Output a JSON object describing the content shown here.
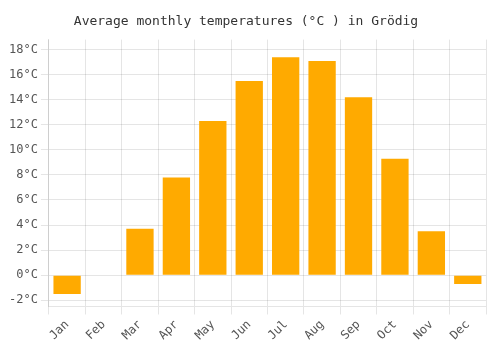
{
  "chart_data": {
    "type": "bar",
    "title": "Average monthly temperatures (°C ) in Grödig",
    "categories": [
      "Jan",
      "Feb",
      "Mar",
      "Apr",
      "May",
      "Jun",
      "Jul",
      "Aug",
      "Sep",
      "Oct",
      "Nov",
      "Dec"
    ],
    "values": [
      -1.5,
      0.0,
      3.7,
      7.8,
      12.3,
      15.5,
      17.4,
      17.1,
      14.2,
      9.3,
      3.5,
      -0.7
    ],
    "color": "#FFAA00",
    "ylim": [
      -2.5,
      18.8
    ],
    "yticks": [
      {
        "value": -2,
        "label": "-2°C"
      },
      {
        "value": 0,
        "label": "0°C"
      },
      {
        "value": 2,
        "label": "2°C"
      },
      {
        "value": 4,
        "label": "4°C"
      },
      {
        "value": 6,
        "label": "6°C"
      },
      {
        "value": 8,
        "label": "8°C"
      },
      {
        "value": 10,
        "label": "10°C"
      },
      {
        "value": 12,
        "label": "12°C"
      },
      {
        "value": 14,
        "label": "14°C"
      },
      {
        "value": 16,
        "label": "16°C"
      },
      {
        "value": 18,
        "label": "18°C"
      }
    ],
    "grid": true
  }
}
